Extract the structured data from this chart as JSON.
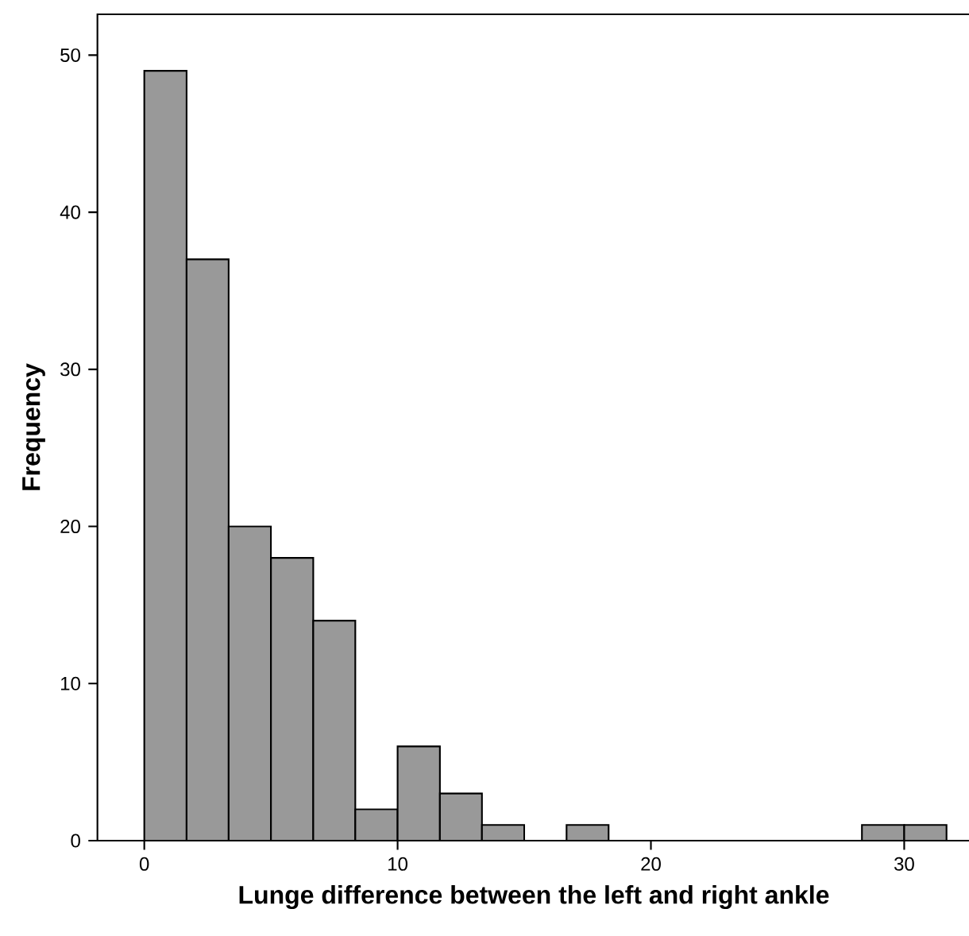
{
  "chart_data": {
    "type": "histogram",
    "xlabel": "Lunge difference between the left and right ankle",
    "ylabel": "Frequency",
    "bins": [
      0,
      1.67,
      3.33,
      5,
      6.67,
      8.33,
      10,
      11.67,
      13.33,
      15,
      16.67,
      18.33,
      20,
      21.67,
      23.33,
      25,
      26.67,
      28.33,
      30,
      31.67
    ],
    "values": [
      49,
      37,
      20,
      18,
      14,
      2,
      6,
      3,
      1,
      0,
      1,
      0,
      0,
      0,
      0,
      0,
      0,
      1,
      1
    ],
    "color": "#999999",
    "xlim": [
      -1.85,
      32.6
    ],
    "ylim": [
      0,
      52.6
    ],
    "xticks": [
      0,
      10,
      20,
      30
    ],
    "yticks": [
      0,
      10,
      20,
      30,
      40,
      50
    ],
    "grid": false
  }
}
